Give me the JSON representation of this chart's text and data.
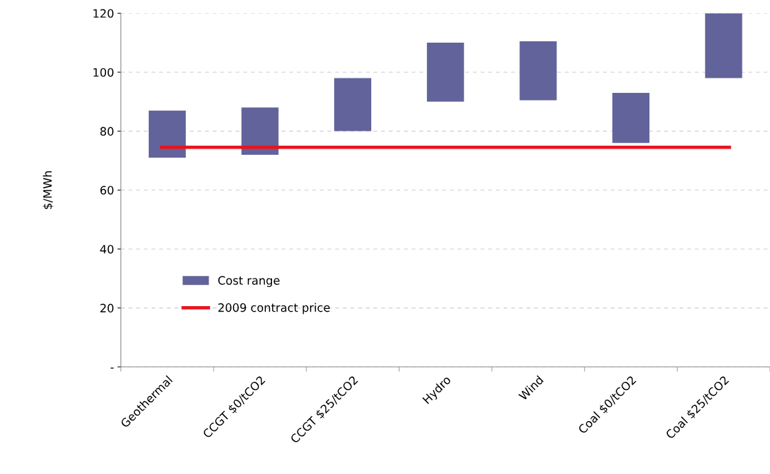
{
  "chart_data": {
    "type": "bar",
    "ylabel": "$/MWh",
    "categories": [
      "Geothermal",
      "CCGT $0/tCO2",
      "CCGT $25/tCO2",
      "Hydro",
      "Wind",
      "Coal $0/tCO2",
      "Coal $25/tCO2"
    ],
    "series": [
      {
        "name": "Cost range",
        "color": "#63639b",
        "values": [
          16,
          16,
          18,
          20,
          20,
          17,
          22
        ],
        "base": [
          71,
          72,
          80,
          90,
          90.5,
          76,
          98
        ]
      }
    ],
    "ref_lines": [
      {
        "axis": "y",
        "value": 74.5,
        "label": "2009 contract price",
        "color": "#e8141c",
        "line_style": "solid"
      }
    ],
    "ylim": [
      0,
      120
    ],
    "yticks": [
      {
        "value": 0,
        "label": "-"
      },
      20,
      40,
      60,
      80,
      100,
      120
    ],
    "grid": "y",
    "legend": "lower left"
  }
}
